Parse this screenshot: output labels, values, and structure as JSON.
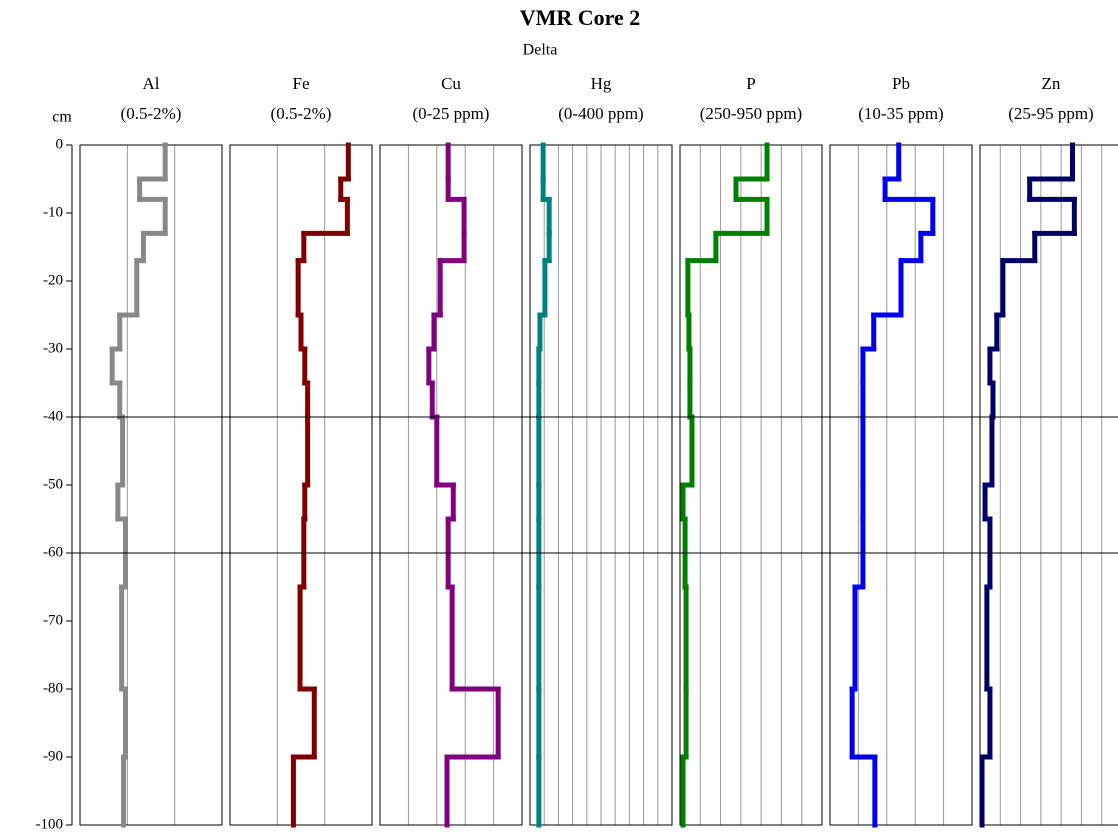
{
  "chart_data": {
    "type": "step-profile",
    "title": "VMR Core 2",
    "subtitle": "Delta",
    "y_label": "cm",
    "ylim": [
      0,
      -100
    ],
    "yticks": [
      0,
      -10,
      -20,
      -30,
      -40,
      -50,
      -60,
      -70,
      -80,
      -90,
      -100
    ],
    "depth_bins": [
      0,
      -5,
      -8,
      -13,
      -17,
      -25,
      -30,
      -35,
      -40,
      -50,
      -55,
      -65,
      -80,
      -90,
      -100
    ],
    "reference_lines": [
      -40,
      -60
    ],
    "series": [
      {
        "name": "Al",
        "range_label": "(0.5-2%)",
        "color": "#888888",
        "xlim": [
          0.5,
          2
        ],
        "xticks": [
          1,
          1.5
        ],
        "values": [
          1.4,
          1.13,
          1.4,
          1.17,
          1.1,
          0.92,
          0.84,
          0.92,
          0.95,
          0.9,
          0.98,
          0.94,
          0.98,
          0.96
        ]
      },
      {
        "name": "Fe",
        "range_label": "(0.5-2%)",
        "color": "#800000",
        "xlim": [
          0.5,
          2
        ],
        "xticks": [
          1,
          1.5
        ],
        "values": [
          1.75,
          1.67,
          1.74,
          1.28,
          1.22,
          1.25,
          1.29,
          1.32,
          1.32,
          1.29,
          1.28,
          1.24,
          1.39,
          1.17
        ]
      },
      {
        "name": "Cu",
        "range_label": "(0-25 ppm)",
        "color": "#800080",
        "xlim": [
          0,
          25
        ],
        "xticks": [
          5,
          10,
          15,
          20
        ],
        "values": [
          12.0,
          12.0,
          14.8,
          14.8,
          10.6,
          9.5,
          8.6,
          9.2,
          10.0,
          12.9,
          12.0,
          12.7,
          20.8,
          11.8
        ]
      },
      {
        "name": "Hg",
        "range_label": "(0-400 ppm)",
        "color": "#008080",
        "xlim": [
          0,
          400
        ],
        "xticks": [
          40,
          80,
          120,
          160,
          200,
          240,
          280,
          320,
          360
        ],
        "values": [
          37,
          37,
          54,
          54,
          42,
          28,
          25,
          25,
          25,
          25,
          25,
          25,
          25,
          25
        ]
      },
      {
        "name": "P",
        "range_label": "(250-950 ppm)",
        "color": "#008000",
        "xlim": [
          250,
          950
        ],
        "xticks": [
          350,
          450,
          550,
          650,
          750,
          850
        ],
        "values": [
          679,
          526,
          679,
          427,
          289,
          294,
          299,
          299,
          309,
          265,
          275,
          280,
          280,
          265
        ]
      },
      {
        "name": "Pb",
        "range_label": "(10-35 ppm)",
        "color": "#0000ee",
        "xlim": [
          10,
          35
        ],
        "xticks": [
          15,
          20,
          25,
          30
        ],
        "values": [
          22.1,
          19.7,
          28.1,
          26.0,
          22.5,
          17.7,
          15.8,
          15.8,
          15.8,
          15.8,
          15.8,
          14.4,
          13.9,
          17.9
        ]
      },
      {
        "name": "Zn",
        "range_label": "(25-95 ppm)",
        "color": "#000066",
        "xlim": [
          25,
          95
        ],
        "xticks": [
          35,
          45,
          55,
          65,
          75,
          85
        ],
        "values": [
          70.6,
          49.5,
          71.5,
          52.0,
          36.3,
          33.3,
          29.9,
          31.4,
          30.9,
          27.5,
          29.9,
          28.4,
          29.9,
          26.0
        ]
      }
    ]
  }
}
